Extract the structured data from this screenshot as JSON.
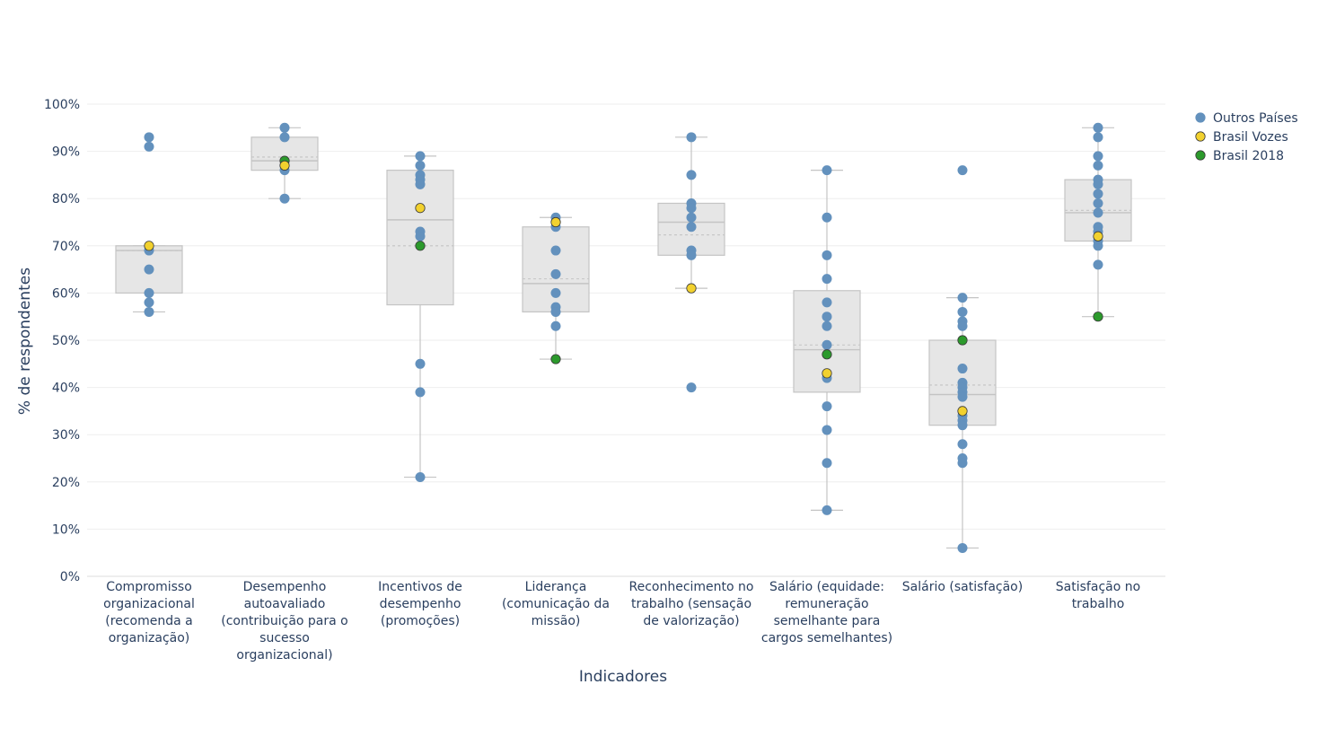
{
  "chart_data": {
    "type": "box",
    "title": "",
    "xlabel": "Indicadores",
    "ylabel": "% de respondentes",
    "ylim": [
      0,
      100
    ],
    "ytick_values": [
      0,
      10,
      20,
      30,
      40,
      50,
      60,
      70,
      80,
      90,
      100
    ],
    "ytick_labels": [
      "0%",
      "10%",
      "20%",
      "30%",
      "40%",
      "50%",
      "60%",
      "70%",
      "80%",
      "90%",
      "100%"
    ],
    "grid": true,
    "legend_position": "top-right",
    "colors": {
      "outros": "#6391bd",
      "vozes": "#f2d12e",
      "b2018": "#2c9a2c",
      "box_fill": "#e6e6e6",
      "box_line": "#c4c4c4",
      "grid": "#eeeeee",
      "axis_text": "#2a3f5f"
    },
    "legend": [
      {
        "key": "outros",
        "name": "Outros Países"
      },
      {
        "key": "vozes",
        "name": "Brasil Vozes"
      },
      {
        "key": "b2018",
        "name": "Brasil 2018"
      }
    ],
    "categories": [
      {
        "label_lines": [
          "Compromisso",
          "organizacional",
          "(recomenda a",
          "organização)"
        ],
        "box": {
          "q1": 60,
          "median": 69,
          "q3": 70,
          "mean": 69,
          "whisker_low": 56,
          "whisker_high": 70
        },
        "outros": [
          93,
          91,
          69,
          65,
          60,
          58,
          56
        ],
        "vozes": 70,
        "b2018": null
      },
      {
        "label_lines": [
          "Desempenho",
          "autoavaliado",
          "(contribuição para o",
          "sucesso",
          "organizacional)"
        ],
        "box": {
          "q1": 86,
          "median": 88,
          "q3": 93,
          "mean": 88.8,
          "whisker_low": 80,
          "whisker_high": 95
        },
        "outros": [
          95,
          93,
          86,
          80
        ],
        "vozes": 87,
        "b2018": 88
      },
      {
        "label_lines": [
          "Incentivos de",
          "desempenho",
          "(promoções)"
        ],
        "box": {
          "q1": 57.5,
          "median": 75.5,
          "q3": 86,
          "mean": 70,
          "whisker_low": 21,
          "whisker_high": 89
        },
        "outros": [
          89,
          87,
          85,
          84,
          83,
          73,
          72,
          45,
          39,
          21
        ],
        "vozes": 78,
        "b2018": 70
      },
      {
        "label_lines": [
          "Liderança",
          "(comunicação da",
          "missão)"
        ],
        "box": {
          "q1": 56,
          "median": 62,
          "q3": 74,
          "mean": 63,
          "whisker_low": 46,
          "whisker_high": 76
        },
        "outros": [
          76,
          74,
          69,
          64,
          60,
          57,
          56,
          53
        ],
        "vozes": 75,
        "b2018": 46
      },
      {
        "label_lines": [
          "Reconhecimento no",
          "trabalho (sensação",
          "de valorização)"
        ],
        "box": {
          "q1": 68,
          "median": 75,
          "q3": 79,
          "mean": 72.3,
          "whisker_low": 61,
          "whisker_high": 93
        },
        "outros": [
          93,
          85,
          79,
          78,
          76,
          74,
          69,
          68,
          40
        ],
        "vozes": 61,
        "b2018": null
      },
      {
        "label_lines": [
          "Salário (equidade:",
          "remuneração",
          "semelhante para",
          "cargos semelhantes)"
        ],
        "box": {
          "q1": 39,
          "median": 48,
          "q3": 60.5,
          "mean": 49,
          "whisker_low": 14,
          "whisker_high": 86
        },
        "outros": [
          86,
          76,
          68,
          63,
          58,
          55,
          53,
          49,
          42,
          36,
          31,
          24,
          14
        ],
        "vozes": 43,
        "b2018": 47
      },
      {
        "label_lines": [
          "Salário (satisfação)"
        ],
        "box": {
          "q1": 32,
          "median": 38.5,
          "q3": 50,
          "mean": 40.5,
          "whisker_low": 6,
          "whisker_high": 59
        },
        "outros": [
          86,
          59,
          56,
          54,
          53,
          44,
          41,
          40,
          39,
          38,
          34,
          33,
          32,
          28,
          25,
          24,
          6
        ],
        "vozes": 35,
        "b2018": 50
      },
      {
        "label_lines": [
          "Satisfação no",
          "trabalho"
        ],
        "box": {
          "q1": 71,
          "median": 77,
          "q3": 84,
          "mean": 77.5,
          "whisker_low": 55,
          "whisker_high": 95
        },
        "outros": [
          95,
          93,
          89,
          87,
          84,
          83,
          81,
          79,
          77,
          74,
          73,
          71,
          70,
          66
        ],
        "vozes": 72,
        "b2018": 55
      }
    ]
  }
}
